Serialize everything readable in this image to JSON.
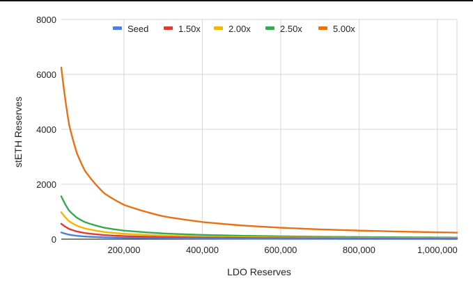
{
  "chart_data": {
    "type": "line",
    "title": "",
    "xlabel": "LDO Reserves",
    "ylabel": "stETH Reserves",
    "xlim": [
      40000,
      1050000
    ],
    "ylim": [
      0,
      8000
    ],
    "x_ticks": [
      200000,
      400000,
      600000,
      800000,
      1000000
    ],
    "x_tick_labels": [
      "200,000",
      "400,000",
      "600,000",
      "800,000",
      "1,000,000"
    ],
    "y_ticks": [
      0,
      2000,
      4000,
      6000,
      8000
    ],
    "y_tick_labels": [
      "0",
      "2000",
      "4000",
      "6000",
      "8000"
    ],
    "grid": true,
    "legend_position": "top",
    "x": [
      40000,
      60000,
      80000,
      100000,
      150000,
      200000,
      300000,
      400000,
      500000,
      600000,
      700000,
      800000,
      900000,
      1000000,
      1050000
    ],
    "series": [
      {
        "name": "Seed",
        "color": "#4a7fe0",
        "values": [
          245,
          163,
          122,
          98,
          65,
          49,
          33,
          25,
          20,
          16,
          14,
          12,
          11,
          10,
          9
        ]
      },
      {
        "name": "1.50x",
        "color": "#df3a2f",
        "values": [
          560,
          373,
          280,
          224,
          149,
          112,
          75,
          56,
          45,
          37,
          32,
          28,
          25,
          22,
          21
        ]
      },
      {
        "name": "2.00x",
        "color": "#f4b400",
        "values": [
          980,
          653,
          490,
          392,
          261,
          196,
          131,
          98,
          78,
          65,
          56,
          49,
          44,
          39,
          37
        ]
      },
      {
        "name": "2.50x",
        "color": "#34a853",
        "values": [
          1560,
          1040,
          780,
          624,
          416,
          312,
          208,
          156,
          125,
          104,
          89,
          78,
          69,
          62,
          59
        ]
      },
      {
        "name": "5.00x",
        "color": "#ea7113",
        "values": [
          6250,
          4167,
          3125,
          2500,
          1667,
          1250,
          833,
          625,
          500,
          417,
          357,
          313,
          278,
          250,
          238
        ]
      }
    ]
  }
}
